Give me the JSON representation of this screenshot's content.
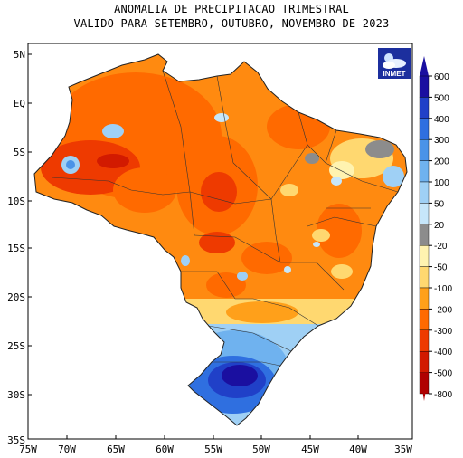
{
  "title": {
    "line1": "ANOMALIA DE PRECIPITACAO TRIMESTRAL",
    "line2": "VALIDO PARA SETEMBRO, OUTUBRO, NOVEMBRO DE 2023"
  },
  "logo": {
    "text": "INMET"
  },
  "axes": {
    "lat_labels": [
      "5N",
      "EQ",
      "5S",
      "10S",
      "15S",
      "20S",
      "25S",
      "30S",
      "35S"
    ],
    "lon_labels": [
      "75W",
      "70W",
      "65W",
      "60W",
      "55W",
      "50W",
      "45W",
      "40W",
      "35W"
    ]
  },
  "colorbar": {
    "labels": [
      "600",
      "500",
      "400",
      "300",
      "200",
      "100",
      "50",
      "20",
      "-20",
      "-50",
      "-100",
      "-200",
      "-300",
      "-400",
      "-500",
      "-800"
    ],
    "colors": [
      "#1a0fa0",
      "#2040c8",
      "#2f6fe0",
      "#4a93e8",
      "#6fb2ef",
      "#9fd0f5",
      "#c6e6fa",
      "#8c8c8c",
      "#fff3b0",
      "#ffd870",
      "#ffa01a",
      "#ff6a00",
      "#ee3a00",
      "#d21a00",
      "#b00000"
    ]
  }
}
